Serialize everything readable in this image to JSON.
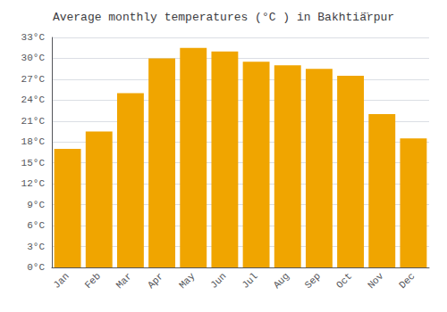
{
  "chart_data": {
    "type": "bar",
    "title": "Average monthly temperatures (°C ) in Bakhtiä̈rpur",
    "categories": [
      "Jan",
      "Feb",
      "Mar",
      "Apr",
      "May",
      "Jun",
      "Jul",
      "Aug",
      "Sep",
      "Oct",
      "Nov",
      "Dec"
    ],
    "values": [
      17,
      19.5,
      25,
      30,
      31.5,
      31,
      29.5,
      29,
      28.5,
      27.5,
      22,
      18.5
    ],
    "color": "#F0A500",
    "ylim": [
      0,
      33
    ],
    "yticks": [
      {
        "value": 0,
        "label": "0°C"
      },
      {
        "value": 3,
        "label": "3°C"
      },
      {
        "value": 6,
        "label": "6°C"
      },
      {
        "value": 9,
        "label": "9°C"
      },
      {
        "value": 12,
        "label": "12°C"
      },
      {
        "value": 15,
        "label": "15°C"
      },
      {
        "value": 18,
        "label": "18°C"
      },
      {
        "value": 21,
        "label": "21°C"
      },
      {
        "value": 24,
        "label": "24°C"
      },
      {
        "value": 27,
        "label": "27°C"
      },
      {
        "value": 30,
        "label": "30°C"
      },
      {
        "value": 33,
        "label": "33°C"
      }
    ],
    "grid": true
  }
}
